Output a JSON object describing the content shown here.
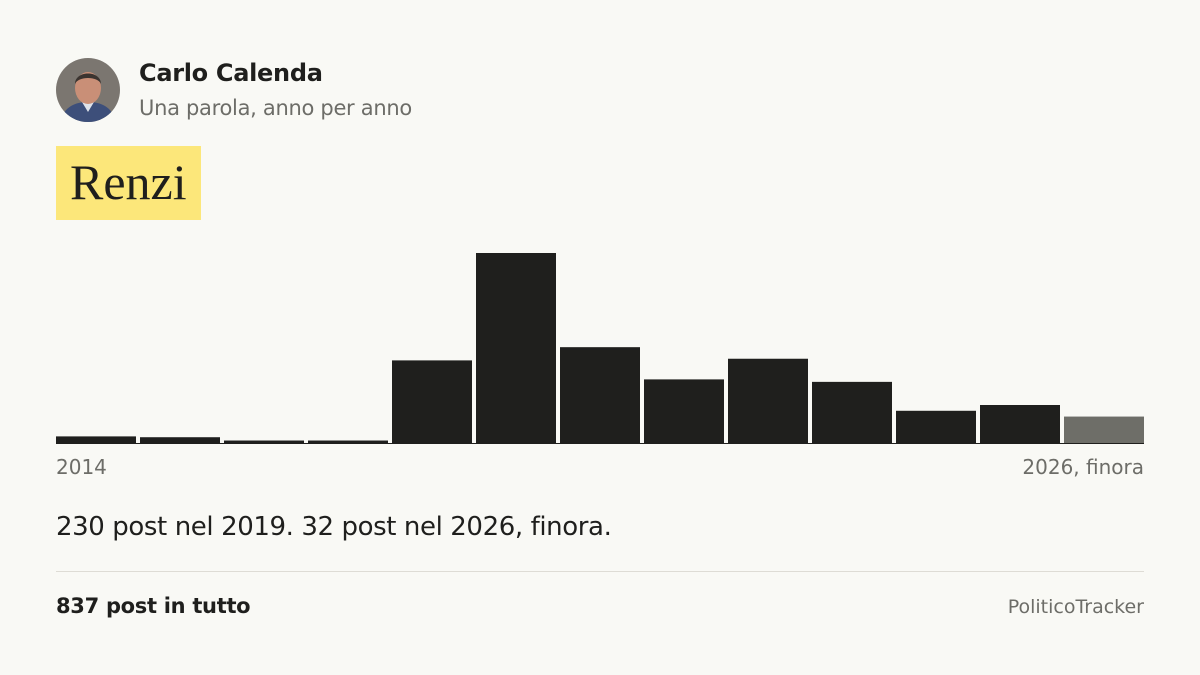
{
  "header": {
    "name": "Carlo Calenda",
    "subtitle": "Una parola, anno per anno"
  },
  "keyword": "Renzi",
  "chart_data": {
    "type": "bar",
    "categories": [
      "2014",
      null,
      null,
      null,
      null,
      null,
      null,
      null,
      null,
      null,
      null,
      null,
      "2026, finora"
    ],
    "values": [
      8,
      7,
      3,
      3,
      100,
      230,
      116,
      77,
      102,
      74,
      39,
      46,
      32
    ],
    "colors": [
      "#1f1f1d",
      "#1f1f1d",
      "#1f1f1d",
      "#1f1f1d",
      "#1f1f1d",
      "#1f1f1d",
      "#1f1f1d",
      "#1f1f1d",
      "#1f1f1d",
      "#1f1f1d",
      "#1f1f1d",
      "#1f1f1d",
      "#6e6e68"
    ],
    "ylim": [
      0,
      230
    ]
  },
  "summary": "230 post nel 2019. 32 post nel 2026, finora.",
  "footer": {
    "total": "837 post in tutto",
    "brand": "PoliticoTracker"
  }
}
